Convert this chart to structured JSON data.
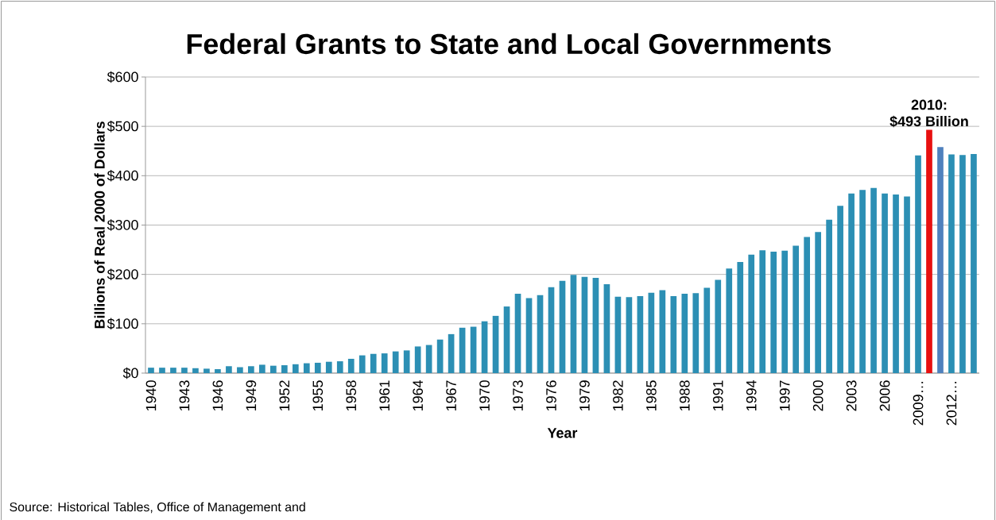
{
  "chart_data": {
    "type": "bar",
    "title": "Federal Grants to State and Local Governments",
    "xlabel": "Year",
    "ylabel": "Billions of Real 2000 of Dollars",
    "categories": [
      "1940",
      null,
      null,
      "1943",
      null,
      null,
      "1946",
      null,
      null,
      "1949",
      null,
      null,
      "1952",
      null,
      null,
      "1955",
      null,
      null,
      "1958",
      null,
      null,
      "1961",
      null,
      null,
      "1964",
      null,
      null,
      "1967",
      null,
      null,
      "1970",
      null,
      null,
      "1973",
      null,
      null,
      "1976",
      null,
      null,
      "1979",
      null,
      null,
      "1982",
      null,
      null,
      "1985",
      null,
      null,
      "1988",
      null,
      null,
      "1991",
      null,
      null,
      "1994",
      null,
      null,
      "1997",
      null,
      null,
      "2000",
      null,
      null,
      "2003",
      null,
      null,
      "2006",
      null,
      null,
      "2009…",
      null,
      null,
      "2012…",
      null,
      null
    ],
    "values": [
      11,
      11,
      11,
      11,
      10,
      9,
      8,
      14,
      12,
      14,
      17,
      15,
      16,
      18,
      20,
      21,
      23,
      24,
      29,
      36,
      39,
      40,
      44,
      46,
      54,
      57,
      68,
      79,
      92,
      94,
      105,
      116,
      135,
      161,
      152,
      158,
      174,
      187,
      199,
      195,
      193,
      180,
      155,
      154,
      156,
      163,
      168,
      156,
      161,
      162,
      173,
      189,
      212,
      225,
      240,
      249,
      246,
      248,
      258,
      276,
      286,
      311,
      339,
      364,
      371,
      375,
      364,
      362,
      358,
      441,
      493,
      458,
      443,
      442,
      444
    ],
    "colors": [
      "#2c8fb4",
      "#2c8fb4",
      "#2c8fb4",
      "#2c8fb4",
      "#2c8fb4",
      "#2c8fb4",
      "#2c8fb4",
      "#2c8fb4",
      "#2c8fb4",
      "#2c8fb4",
      "#2c8fb4",
      "#2c8fb4",
      "#2c8fb4",
      "#2c8fb4",
      "#2c8fb4",
      "#2c8fb4",
      "#2c8fb4",
      "#2c8fb4",
      "#2c8fb4",
      "#2c8fb4",
      "#2c8fb4",
      "#2c8fb4",
      "#2c8fb4",
      "#2c8fb4",
      "#2c8fb4",
      "#2c8fb4",
      "#2c8fb4",
      "#2c8fb4",
      "#2c8fb4",
      "#2c8fb4",
      "#2c8fb4",
      "#2c8fb4",
      "#2c8fb4",
      "#2c8fb4",
      "#2c8fb4",
      "#2c8fb4",
      "#2c8fb4",
      "#2c8fb4",
      "#2c8fb4",
      "#2c8fb4",
      "#2c8fb4",
      "#2c8fb4",
      "#2c8fb4",
      "#2c8fb4",
      "#2c8fb4",
      "#2c8fb4",
      "#2c8fb4",
      "#2c8fb4",
      "#2c8fb4",
      "#2c8fb4",
      "#2c8fb4",
      "#2c8fb4",
      "#2c8fb4",
      "#2c8fb4",
      "#2c8fb4",
      "#2c8fb4",
      "#2c8fb4",
      "#2c8fb4",
      "#2c8fb4",
      "#2c8fb4",
      "#2c8fb4",
      "#2c8fb4",
      "#2c8fb4",
      "#2c8fb4",
      "#2c8fb4",
      "#2c8fb4",
      "#2c8fb4",
      "#2c8fb4",
      "#2c8fb4",
      "#2c8fb4",
      "#e81010",
      "#4f81bd",
      "#2c8fb4",
      "#2c8fb4",
      "#2c8fb4"
    ],
    "ylim": [
      0,
      600
    ],
    "yticks": [
      {
        "value": 0,
        "label": "$0"
      },
      {
        "value": 100,
        "label": "$100"
      },
      {
        "value": 200,
        "label": "$200"
      },
      {
        "value": 300,
        "label": "$300"
      },
      {
        "value": 400,
        "label": "$400"
      },
      {
        "value": 500,
        "label": "$500"
      },
      {
        "value": 600,
        "label": "$600"
      }
    ],
    "grid": "y",
    "annotations": [
      {
        "text": "2010:",
        "y": 493
      },
      {
        "text": "$493 Billion",
        "y": 493
      },
      "Source:  Historical Tables, Office of Management and"
    ]
  }
}
